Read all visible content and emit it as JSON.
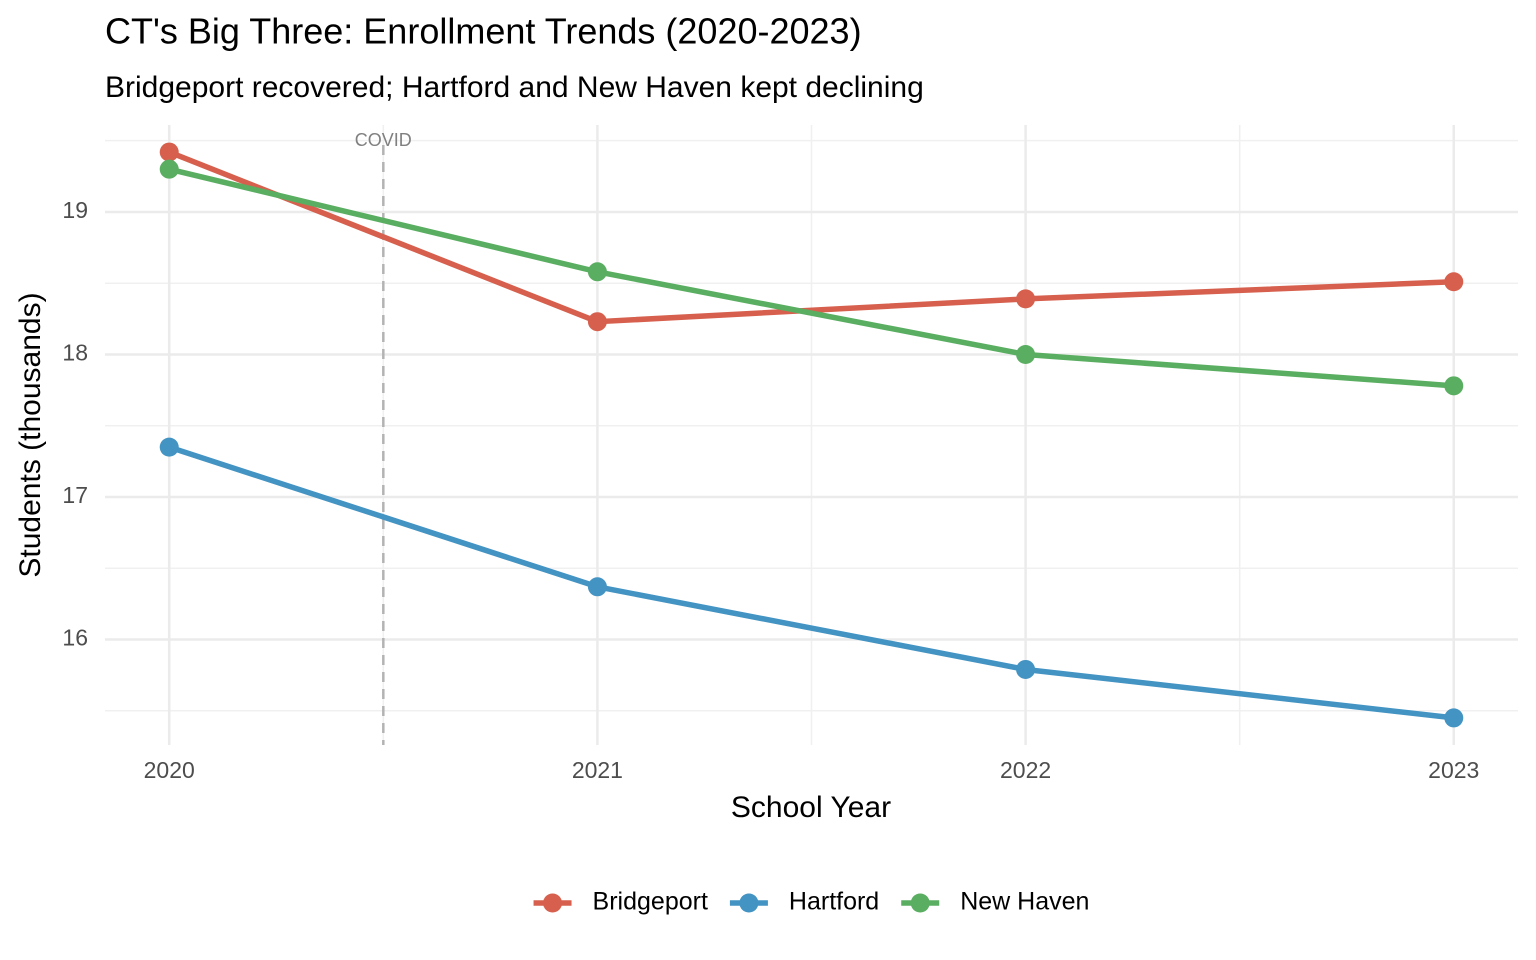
{
  "chart_data": {
    "type": "line",
    "title": "CT's Big Three: Enrollment Trends (2020-2023)",
    "subtitle": "Bridgeport recovered; Hartford and New Haven kept declining",
    "x_label": "School Year",
    "y_label": "Students (thousands)",
    "x": [
      2020,
      2021,
      2022,
      2023
    ],
    "series": [
      {
        "name": "Bridgeport",
        "color": "#d6604d",
        "values": [
          19.42,
          18.23,
          18.39,
          18.51
        ]
      },
      {
        "name": "Hartford",
        "color": "#4393c3",
        "values": [
          17.35,
          16.37,
          15.79,
          15.45
        ]
      },
      {
        "name": "New Haven",
        "color": "#5aae61",
        "values": [
          19.3,
          18.58,
          18.0,
          17.78
        ]
      }
    ],
    "xlim": [
      2019.85,
      2023.15
    ],
    "ylim": [
      15.26,
      19.61
    ],
    "xticks": [
      2020,
      2021,
      2022,
      2023
    ],
    "yticks": [
      16,
      17,
      18,
      19
    ],
    "x_minor_grid": [
      2020.5,
      2021.5,
      2022.5
    ],
    "y_minor_grid": [
      15.5,
      16.5,
      17.5,
      18.5,
      19.5
    ],
    "grid": true,
    "legend": "bottom",
    "annotations": [
      {
        "x": 2020.5,
        "label": "COVID"
      }
    ]
  }
}
